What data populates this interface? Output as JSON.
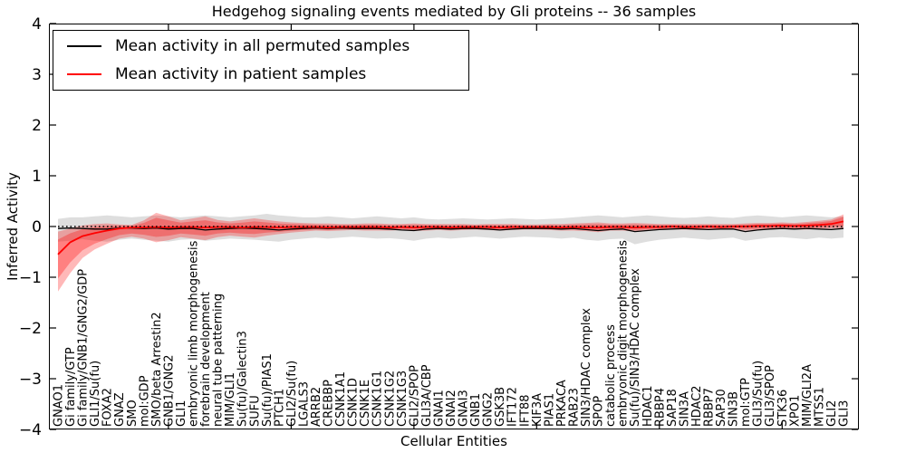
{
  "title": "Hedgehog signaling events mediated by Gli proteins -- 36 samples",
  "xlabel": "Cellular Entities",
  "ylabel": "Inferred Activity",
  "legend": {
    "items": [
      {
        "label": "Mean activity in all permuted samples",
        "color": "#000000"
      },
      {
        "label": "Mean activity in patient samples",
        "color": "#ff0000"
      }
    ]
  },
  "colors": {
    "axis": "#000000",
    "permuted_line": "#000000",
    "permuted_band": "#a8a8a8",
    "patient_line": "#ff0000",
    "patient_band": "#ff0000",
    "zero_line": "#000000",
    "background": "#ffffff"
  },
  "chart_data": {
    "type": "line",
    "title": "Hedgehog signaling events mediated by Gli proteins -- 36 samples",
    "xlabel": "Cellular Entities",
    "ylabel": "Inferred Activity",
    "ylim": [
      -4,
      4
    ],
    "yticks": [
      -4,
      -3,
      -2,
      -1,
      0,
      1,
      2,
      3,
      4
    ],
    "xtick_indices": [
      9,
      19,
      29,
      39,
      49,
      59
    ],
    "grid": false,
    "zero_line_dotted": true,
    "legend_position": "upper left",
    "categories": [
      "GNAO1",
      "Gi family/GTP",
      "Gi family/GNB1/GNG2/GDP",
      "GLI1/Su(fu)",
      "FOXA2",
      "GNAZ",
      "SMO",
      "mol:GDP",
      "SMO/beta Arrestin2",
      "GNB1/GNG2",
      "GLI1",
      "embryonic limb morphogenesis",
      "forebrain development",
      "neural tube patterning",
      "MIM/GLI1",
      "Su(fu)/Galectin3",
      "SUFU",
      "Su(fu)/PIAS1",
      "PTCH1",
      "GLI2/Su(fu)",
      "LGALS3",
      "ARRB2",
      "CREBBP",
      "CSNK1A1",
      "CSNK1D",
      "CSNK1E",
      "CSNK1G1",
      "CSNK1G2",
      "CSNK1G3",
      "GLI2/SPOP",
      "GLI3A/CBP",
      "GNAI1",
      "GNAI2",
      "GNAI3",
      "GNB1",
      "GNG2",
      "GSK3B",
      "IFT172",
      "IFT88",
      "KIF3A",
      "PIAS1",
      "PRKACA",
      "RAB23",
      "SIN3/HDAC complex",
      "SPOP",
      "catabolic process",
      "embryonic digit morphogenesis",
      "Su(fu)/SIN3/HDAC complex",
      "HDAC1",
      "RBBP4",
      "SAP18",
      "SIN3A",
      "HDAC2",
      "RBBP7",
      "SAP30",
      "SIN3B",
      "mol:GTP",
      "GLI3/Su(fu)",
      "GLI3/SPOP",
      "STK36",
      "XPO1",
      "MIM/GLI2A",
      "MTSS1",
      "GLI2",
      "GLI3"
    ],
    "series": [
      {
        "name": "Mean activity in all permuted samples",
        "color": "#000000",
        "line_width": 1.3,
        "band_color": "#a8a8a8",
        "band_opacity": 0.38,
        "values": [
          -0.04,
          -0.03,
          -0.04,
          -0.05,
          -0.05,
          -0.03,
          -0.03,
          -0.04,
          -0.03,
          -0.05,
          -0.04,
          -0.04,
          -0.07,
          -0.05,
          -0.04,
          -0.03,
          -0.04,
          -0.05,
          -0.07,
          -0.05,
          -0.04,
          -0.03,
          -0.04,
          -0.03,
          -0.04,
          -0.04,
          -0.04,
          -0.05,
          -0.07,
          -0.08,
          -0.05,
          -0.04,
          -0.05,
          -0.04,
          -0.04,
          -0.05,
          -0.07,
          -0.05,
          -0.04,
          -0.04,
          -0.04,
          -0.05,
          -0.04,
          -0.06,
          -0.08,
          -0.06,
          -0.05,
          -0.1,
          -0.08,
          -0.06,
          -0.05,
          -0.04,
          -0.05,
          -0.06,
          -0.05,
          -0.05,
          -0.1,
          -0.07,
          -0.05,
          -0.04,
          -0.05,
          -0.04,
          -0.05,
          -0.06,
          -0.04
        ],
        "band_upper": [
          0.15,
          0.18,
          0.18,
          0.2,
          0.22,
          0.2,
          0.18,
          0.2,
          0.22,
          0.2,
          0.18,
          0.2,
          0.22,
          0.2,
          0.18,
          0.2,
          0.22,
          0.25,
          0.22,
          0.2,
          0.18,
          0.18,
          0.2,
          0.18,
          0.16,
          0.18,
          0.2,
          0.18,
          0.16,
          0.18,
          0.15,
          0.14,
          0.15,
          0.16,
          0.15,
          0.14,
          0.15,
          0.16,
          0.15,
          0.14,
          0.15,
          0.16,
          0.18,
          0.2,
          0.22,
          0.2,
          0.18,
          0.2,
          0.22,
          0.2,
          0.18,
          0.17,
          0.18,
          0.2,
          0.18,
          0.17,
          0.2,
          0.22,
          0.2,
          0.18,
          0.2,
          0.22,
          0.2,
          0.18,
          0.2
        ],
        "band_lower": [
          -0.3,
          -0.28,
          -0.25,
          -0.28,
          -0.3,
          -0.26,
          -0.24,
          -0.26,
          -0.28,
          -0.3,
          -0.26,
          -0.25,
          -0.28,
          -0.26,
          -0.24,
          -0.25,
          -0.26,
          -0.28,
          -0.3,
          -0.26,
          -0.24,
          -0.22,
          -0.24,
          -0.22,
          -0.2,
          -0.22,
          -0.24,
          -0.23,
          -0.25,
          -0.28,
          -0.24,
          -0.22,
          -0.24,
          -0.22,
          -0.2,
          -0.22,
          -0.24,
          -0.22,
          -0.2,
          -0.21,
          -0.22,
          -0.24,
          -0.22,
          -0.26,
          -0.28,
          -0.25,
          -0.24,
          -0.35,
          -0.3,
          -0.26,
          -0.24,
          -0.22,
          -0.24,
          -0.26,
          -0.24,
          -0.22,
          -0.28,
          -0.25,
          -0.22,
          -0.21,
          -0.23,
          -0.25,
          -0.22,
          -0.24,
          -0.22
        ]
      },
      {
        "name": "Mean activity in patient samples",
        "color": "#ff0000",
        "line_width": 1.8,
        "band_color": "#ff0000",
        "band_opacity": 0.28,
        "inner_band_factor": 0.65,
        "inner_band_opacity": 0.3,
        "values": [
          -0.55,
          -0.31,
          -0.19,
          -0.13,
          -0.08,
          -0.04,
          -0.02,
          -0.02,
          -0.01,
          -0.02,
          -0.01,
          -0.01,
          -0.02,
          -0.01,
          -0.01,
          -0.02,
          -0.01,
          -0.01,
          -0.02,
          -0.01,
          -0.01,
          -0.01,
          -0.02,
          -0.01,
          -0.01,
          -0.01,
          -0.01,
          -0.02,
          -0.01,
          -0.02,
          -0.01,
          -0.01,
          -0.02,
          -0.01,
          -0.01,
          -0.01,
          -0.02,
          -0.01,
          -0.01,
          -0.01,
          -0.01,
          -0.02,
          -0.01,
          -0.02,
          -0.02,
          -0.01,
          -0.01,
          -0.02,
          -0.01,
          -0.01,
          0.0,
          -0.01,
          -0.01,
          0.0,
          -0.01,
          0.0,
          0.0,
          0.01,
          0.01,
          0.02,
          0.01,
          0.02,
          0.03,
          0.05,
          0.1
        ],
        "band_upper": [
          -0.1,
          -0.04,
          0.02,
          0.05,
          0.06,
          0.04,
          0.03,
          0.12,
          0.27,
          0.2,
          0.12,
          0.16,
          0.2,
          0.13,
          0.1,
          0.13,
          0.16,
          0.13,
          0.1,
          0.08,
          0.07,
          0.06,
          0.06,
          0.05,
          0.05,
          0.06,
          0.06,
          0.05,
          0.05,
          0.06,
          0.05,
          0.05,
          0.05,
          0.05,
          0.04,
          0.05,
          0.05,
          0.05,
          0.04,
          0.04,
          0.05,
          0.05,
          0.06,
          0.07,
          0.08,
          0.06,
          0.06,
          0.07,
          0.06,
          0.05,
          0.05,
          0.05,
          0.05,
          0.05,
          0.05,
          0.05,
          0.06,
          0.07,
          0.07,
          0.08,
          0.07,
          0.09,
          0.11,
          0.14,
          0.24
        ],
        "band_lower": [
          -1.28,
          -0.92,
          -0.62,
          -0.45,
          -0.34,
          -0.24,
          -0.2,
          -0.24,
          -0.31,
          -0.27,
          -0.21,
          -0.24,
          -0.27,
          -0.21,
          -0.18,
          -0.2,
          -0.22,
          -0.18,
          -0.15,
          -0.12,
          -0.1,
          -0.08,
          -0.09,
          -0.08,
          -0.07,
          -0.08,
          -0.08,
          -0.08,
          -0.07,
          -0.09,
          -0.08,
          -0.07,
          -0.08,
          -0.07,
          -0.06,
          -0.07,
          -0.08,
          -0.07,
          -0.06,
          -0.06,
          -0.07,
          -0.08,
          -0.08,
          -0.09,
          -0.11,
          -0.08,
          -0.08,
          -0.1,
          -0.08,
          -0.07,
          -0.06,
          -0.06,
          -0.07,
          -0.06,
          -0.06,
          -0.06,
          -0.08,
          -0.07,
          -0.06,
          -0.05,
          -0.06,
          -0.06,
          -0.05,
          -0.04,
          -0.04
        ]
      }
    ]
  }
}
